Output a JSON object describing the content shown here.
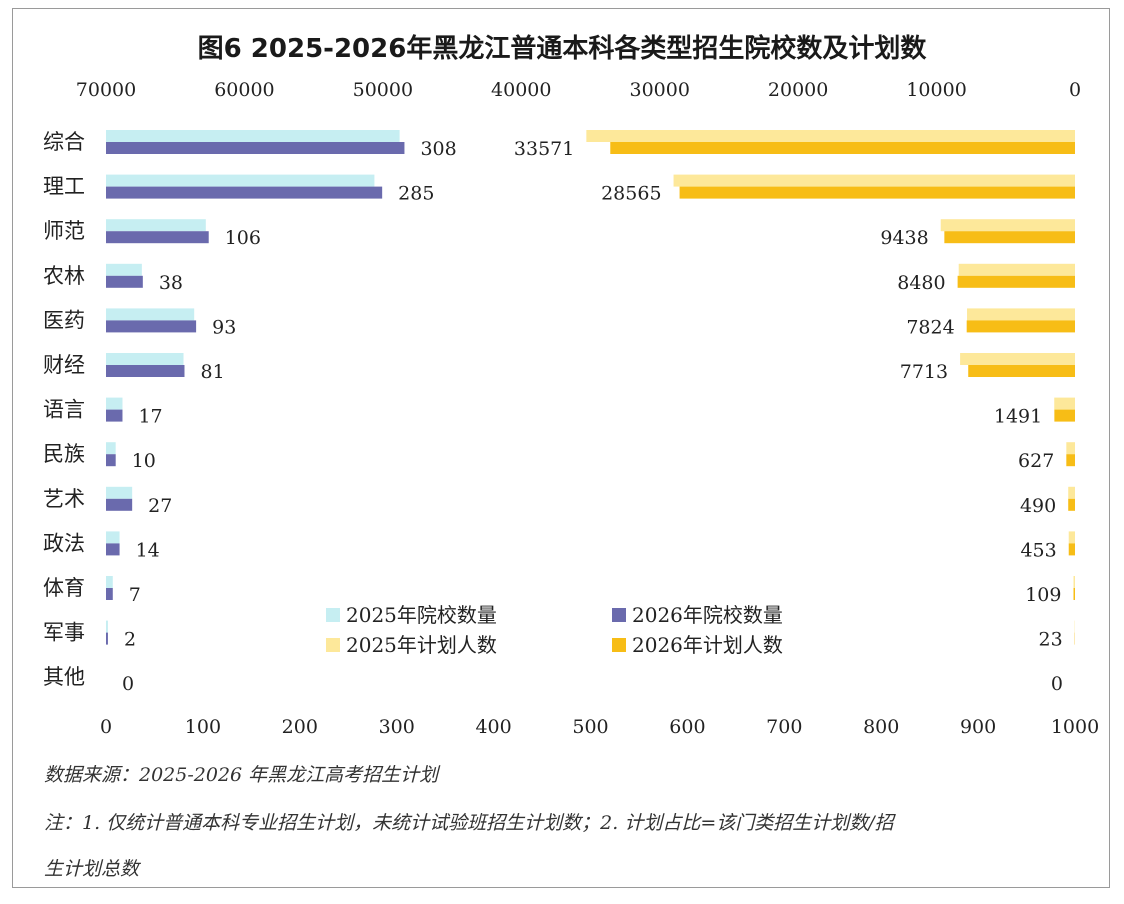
{
  "title": "图6  2025-2026年黑龙江普通本科各类型招生院校数及计划数",
  "chart_data": {
    "type": "bar",
    "orientation": "horizontal",
    "categories": [
      "综合",
      "理工",
      "师范",
      "农林",
      "医药",
      "财经",
      "语言",
      "民族",
      "艺术",
      "政法",
      "体育",
      "军事",
      "其他"
    ],
    "series": [
      {
        "name": "2025年院校数量",
        "axis": "bottom",
        "color": "#c6eef2",
        "values": [
          303,
          277,
          103,
          37,
          91,
          80,
          17,
          10,
          27,
          14,
          7,
          2,
          0
        ]
      },
      {
        "name": "2026年院校数量",
        "axis": "bottom",
        "color": "#6a6aad",
        "values": [
          308,
          285,
          106,
          38,
          93,
          81,
          17,
          10,
          27,
          14,
          7,
          2,
          0
        ],
        "labels_shown": true
      },
      {
        "name": "2025年计划人数",
        "axis": "top",
        "color": "#fde89a",
        "values": [
          35300,
          29000,
          9700,
          8400,
          7800,
          8300,
          1500,
          627,
          490,
          453,
          109,
          23,
          0
        ]
      },
      {
        "name": "2026年计划人数",
        "axis": "top",
        "color": "#f7bd16",
        "values": [
          33571,
          28565,
          9438,
          8480,
          7824,
          7713,
          1491,
          627,
          490,
          453,
          109,
          23,
          0
        ],
        "labels_shown": true
      }
    ],
    "bottom_axis": {
      "range": [
        0,
        1000
      ],
      "ticks": [
        "0",
        "100",
        "200",
        "300",
        "400",
        "500",
        "600",
        "700",
        "800",
        "900",
        "1000"
      ]
    },
    "top_axis": {
      "range": [
        70000,
        0
      ],
      "ticks": [
        "70000",
        "60000",
        "50000",
        "40000",
        "30000",
        "20000",
        "10000",
        "0"
      ]
    },
    "legend_placement": "center-bottom"
  },
  "notes": {
    "source": "数据来源：2025-2026 年黑龙江高考招生计划",
    "note_line1": "注：1. 仅统计普通本科专业招生计划，未统计试验班招生计划数；2. 计划占比=该门类招生计划数/招",
    "note_line2": "生计划总数"
  }
}
